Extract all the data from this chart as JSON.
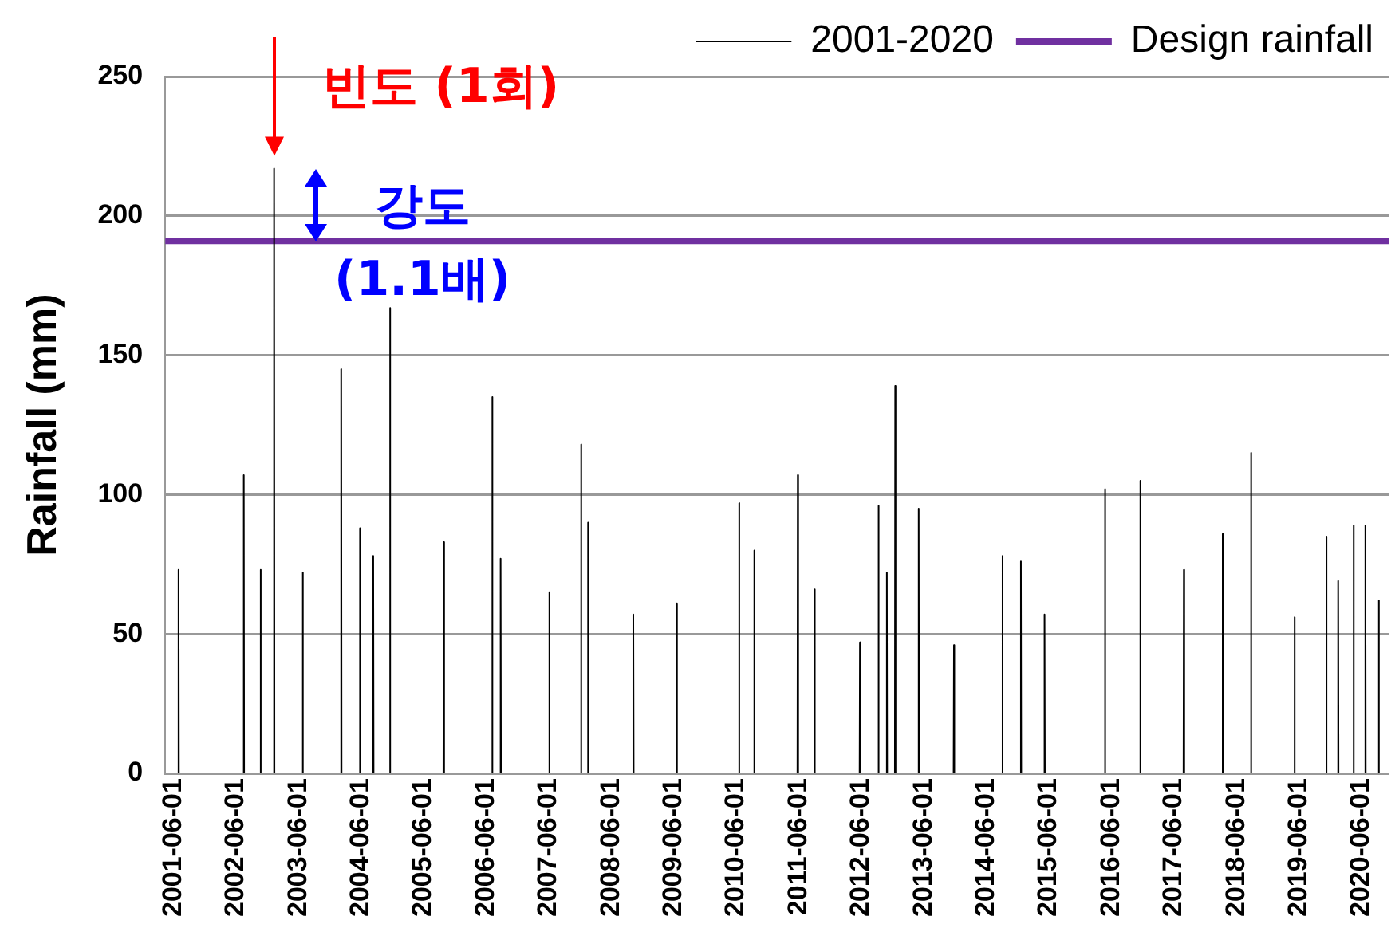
{
  "chart_data": {
    "type": "line",
    "ylabel": "Rainfall (mm)",
    "x": [
      "2001-06-29",
      "2001-07-01",
      "2001-07-03",
      "2002-07-15",
      "2002-07-17",
      "2002-07-19",
      "2002-10-21",
      "2002-10-23",
      "2002-10-25",
      "2003-01-08",
      "2003-01-10",
      "2003-01-12",
      "2003-06-24",
      "2003-06-26",
      "2003-06-28",
      "2004-02-04",
      "2004-02-06",
      "2004-02-08",
      "2004-05-23",
      "2004-05-25",
      "2004-05-27",
      "2004-08-09",
      "2004-08-11",
      "2004-08-13",
      "2004-11-15",
      "2004-11-17",
      "2004-11-19",
      "2005-09-25",
      "2005-09-27",
      "2005-09-29",
      "2006-07-05",
      "2006-07-07",
      "2006-07-09",
      "2006-08-23",
      "2006-08-25",
      "2006-08-27",
      "2007-06-03",
      "2007-06-05",
      "2007-06-07",
      "2007-12-06",
      "2007-12-08",
      "2007-12-10",
      "2008-01-15",
      "2008-01-17",
      "2008-01-19",
      "2008-10-06",
      "2008-10-08",
      "2008-10-10",
      "2009-06-17",
      "2009-06-19",
      "2009-06-21",
      "2010-06-16",
      "2010-06-18",
      "2010-06-20",
      "2010-09-12",
      "2010-09-14",
      "2010-09-16",
      "2011-05-25",
      "2011-05-27",
      "2011-05-29",
      "2011-08-31",
      "2011-09-02",
      "2011-09-04",
      "2012-05-22",
      "2012-05-24",
      "2012-05-26",
      "2012-09-07",
      "2012-09-09",
      "2012-09-11",
      "2012-10-26",
      "2012-10-28",
      "2012-10-30",
      "2012-12-14",
      "2012-12-16",
      "2012-12-18",
      "2013-04-30",
      "2013-05-02",
      "2013-05-04",
      "2013-11-22",
      "2013-11-24",
      "2013-11-26",
      "2014-09-01",
      "2014-09-03",
      "2014-09-05",
      "2014-12-18",
      "2014-12-20",
      "2014-12-22",
      "2015-05-05",
      "2015-05-07",
      "2015-05-09",
      "2016-04-22",
      "2016-04-24",
      "2016-04-26",
      "2016-11-14",
      "2016-11-16",
      "2016-11-18",
      "2017-07-27",
      "2017-07-29",
      "2017-07-31",
      "2018-03-10",
      "2018-03-12",
      "2018-03-14",
      "2018-08-23",
      "2018-08-25",
      "2018-08-27",
      "2019-05-04",
      "2019-05-06",
      "2019-05-08",
      "2019-11-06",
      "2019-11-08",
      "2019-11-10",
      "2020-01-14",
      "2020-01-16",
      "2020-01-18",
      "2020-04-13",
      "2020-04-15",
      "2020-04-17",
      "2020-06-21",
      "2020-06-23",
      "2020-06-25",
      "2020-09-07",
      "2020-09-09",
      "2020-09-11"
    ],
    "series": [
      {
        "name": "2001-2020",
        "color": "#000000",
        "values": [
          0,
          73,
          0,
          0,
          107,
          0,
          0,
          73,
          0,
          0,
          217,
          0,
          0,
          72,
          0,
          0,
          145,
          0,
          0,
          88,
          0,
          0,
          78,
          0,
          0,
          167,
          0,
          0,
          83,
          0,
          0,
          135,
          0,
          0,
          77,
          0,
          0,
          65,
          0,
          0,
          118,
          0,
          0,
          90,
          0,
          0,
          57,
          0,
          0,
          61,
          0,
          0,
          97,
          0,
          0,
          80,
          0,
          0,
          107,
          0,
          0,
          66,
          0,
          0,
          47,
          0,
          0,
          96,
          0,
          0,
          72,
          0,
          0,
          139,
          0,
          0,
          95,
          0,
          0,
          46,
          0,
          0,
          78,
          0,
          0,
          76,
          0,
          0,
          57,
          0,
          0,
          102,
          0,
          0,
          105,
          0,
          0,
          73,
          0,
          0,
          86,
          0,
          0,
          115,
          0,
          0,
          56,
          0,
          0,
          85,
          0,
          0,
          69,
          0,
          0,
          89,
          0,
          0,
          89,
          0,
          0,
          62,
          0
        ]
      },
      {
        "name": "Design rainfall",
        "color": "#7030a0",
        "x": [
          "2001-04-14",
          "2020-11-06"
        ],
        "values": [
          191,
          191
        ]
      }
    ],
    "xlim": [
      "2001-04-14",
      "2020-11-06"
    ],
    "xticks": [
      "2001-06-01",
      "2002-06-01",
      "2003-06-01",
      "2004-06-01",
      "2005-06-01",
      "2006-06-01",
      "2007-06-01",
      "2008-06-01",
      "2009-06-01",
      "2010-06-01",
      "2011-06-01",
      "2012-06-01",
      "2013-06-01",
      "2014-06-01",
      "2015-06-01",
      "2016-06-01",
      "2017-06-01",
      "2018-06-01",
      "2019-06-01",
      "2020-06-01"
    ],
    "ylim": [
      0,
      250
    ],
    "yticks": [
      0,
      50,
      100,
      150,
      200,
      250
    ],
    "grid": "y",
    "legend": "top right",
    "marker": "none",
    "line_style": "solid",
    "annotations": [
      {
        "text": "빈도 (1회)",
        "x": "2003-01-10",
        "y": 217
      },
      {
        "text": "강도 (1.1배)",
        "x": "2003-01-10",
        "y": 191
      }
    ]
  }
}
